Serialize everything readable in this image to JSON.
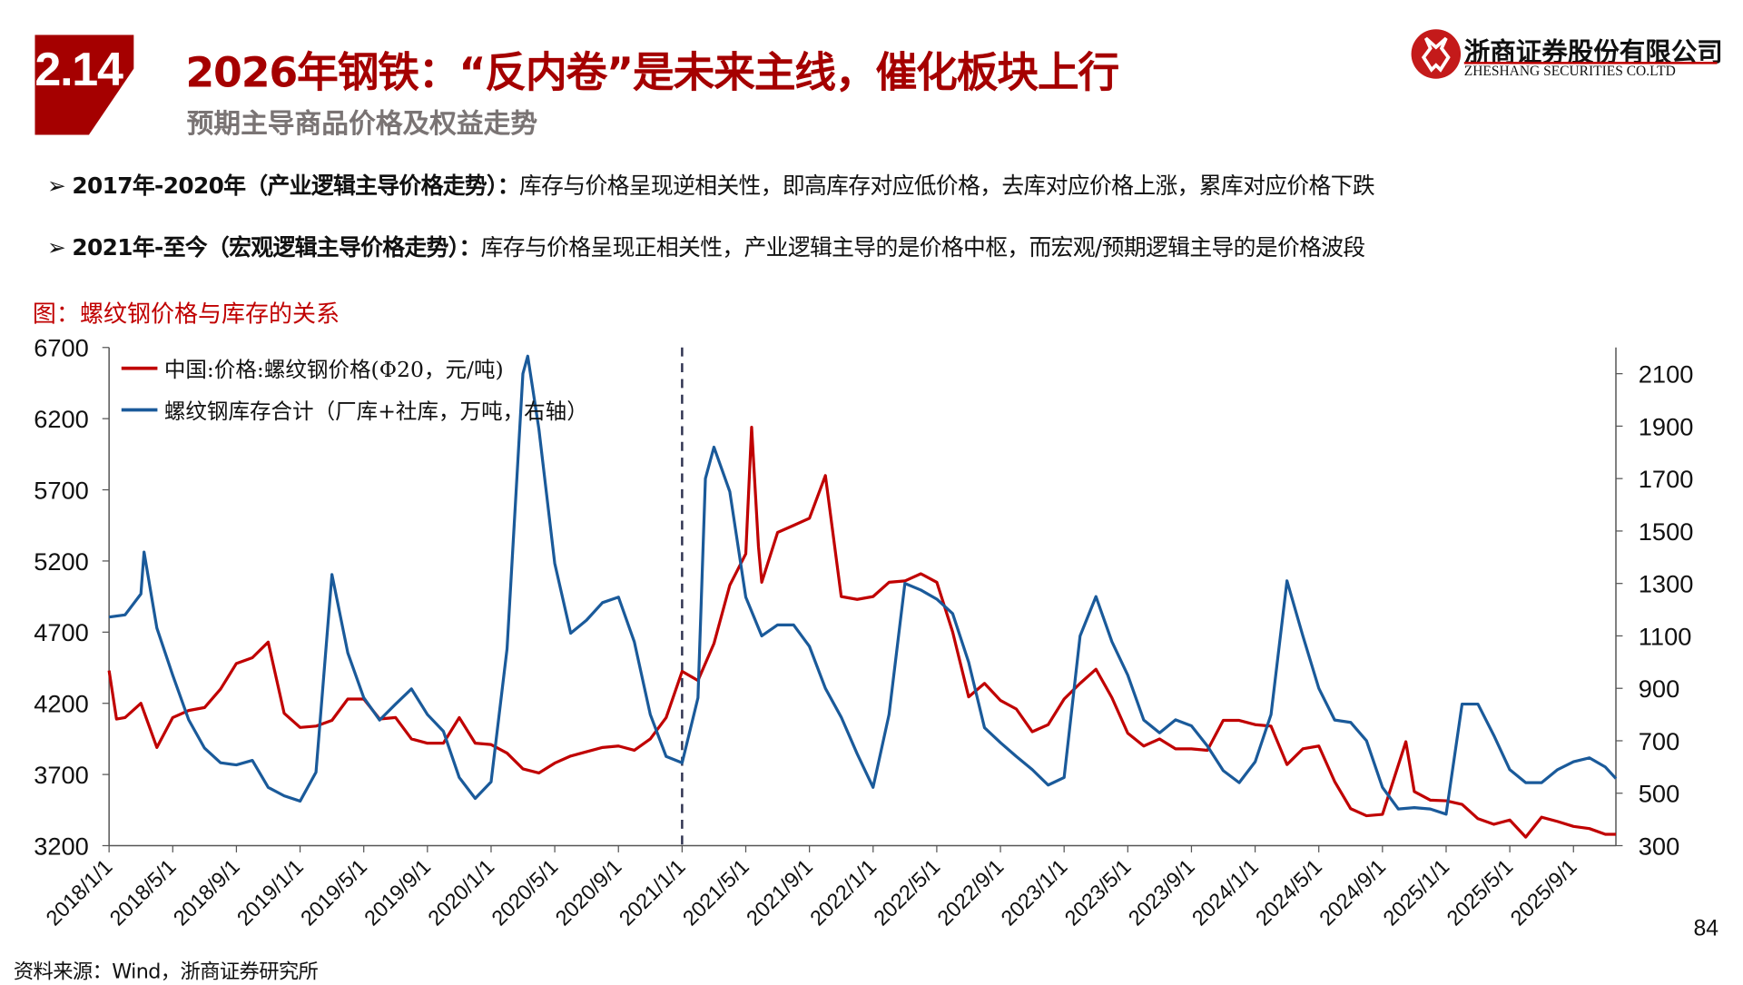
{
  "header": {
    "section_number": "2.14",
    "title": "2026年钢铁：“反内卷”是未来主线，催化板块上行",
    "subtitle": "预期主导商品价格及权益走势"
  },
  "logo": {
    "name_cn": "浙商证券股份有限公司",
    "name_en": "ZHESHANG SECURITIES CO.LTD"
  },
  "bullets": [
    {
      "bold": "2017年-2020年（产业逻辑主导价格走势）：",
      "text": "库存与价格呈现逆相关性，即高库存对应低价格，去库对应价格上涨，累库对应价格下跌"
    },
    {
      "bold": "2021年-至今（宏观逻辑主导价格走势）：",
      "text": "库存与价格呈现正相关性，产业逻辑主导的是价格中枢，而宏观/预期逻辑主导的是价格波段"
    }
  ],
  "figure_title": "图：螺纹钢价格与库存的关系",
  "source": "资料来源：Wind，浙商证券研究所",
  "page_number": "84",
  "colors": {
    "brand_red": "#a50000",
    "price_line": "#c00000",
    "inventory_line": "#1a5a9a",
    "divider": "#2f3350"
  },
  "chart_data": {
    "type": "line",
    "x_range": [
      "2018-01-01",
      "2025-11-21"
    ],
    "x_ticks": [
      "2018/1/1",
      "2018/5/1",
      "2018/9/1",
      "2019/1/1",
      "2019/5/1",
      "2019/9/1",
      "2020/1/1",
      "2020/5/1",
      "2020/9/1",
      "2021/1/1",
      "2021/5/1",
      "2021/9/1",
      "2022/1/1",
      "2022/5/1",
      "2022/9/1",
      "2023/1/1",
      "2023/5/1",
      "2023/9/1",
      "2024/1/1",
      "2024/5/1",
      "2024/9/1",
      "2025/1/1",
      "2025/5/1",
      "2025/9/1"
    ],
    "y_left": {
      "range": [
        3200,
        6700
      ],
      "ticks": [
        "3200",
        "3700",
        "4200",
        "4700",
        "5200",
        "5700",
        "6200",
        "6700"
      ]
    },
    "y_right": {
      "range": [
        300,
        2200
      ],
      "ticks": [
        "300",
        "500",
        "700",
        "900",
        "1100",
        "1300",
        "1500",
        "1700",
        "1900",
        "2100"
      ]
    },
    "reference_line": {
      "x": "2021-01-01",
      "style": "dashed"
    },
    "grid": false,
    "legend_placement": "top-left",
    "series": [
      {
        "name": "中国:价格:螺纹钢价格(Φ20，元/吨)",
        "axis": "left",
        "color": "#c00000",
        "points": [
          [
            "2018-01",
            4430
          ],
          [
            "2018-01-15",
            4090
          ],
          [
            "2018-02",
            4100
          ],
          [
            "2018-03",
            4200
          ],
          [
            "2018-04",
            3890
          ],
          [
            "2018-05",
            4100
          ],
          [
            "2018-06",
            4150
          ],
          [
            "2018-07",
            4170
          ],
          [
            "2018-08",
            4300
          ],
          [
            "2018-09",
            4480
          ],
          [
            "2018-10",
            4520
          ],
          [
            "2018-11",
            4630
          ],
          [
            "2018-12",
            4130
          ],
          [
            "2019-01",
            4030
          ],
          [
            "2019-02",
            4040
          ],
          [
            "2019-03",
            4080
          ],
          [
            "2019-04",
            4230
          ],
          [
            "2019-05",
            4230
          ],
          [
            "2019-06",
            4090
          ],
          [
            "2019-07",
            4100
          ],
          [
            "2019-08",
            3950
          ],
          [
            "2019-09",
            3920
          ],
          [
            "2019-10",
            3920
          ],
          [
            "2019-11",
            4100
          ],
          [
            "2019-12",
            3920
          ],
          [
            "2020-01",
            3910
          ],
          [
            "2020-02",
            3850
          ],
          [
            "2020-03",
            3740
          ],
          [
            "2020-04",
            3710
          ],
          [
            "2020-05",
            3780
          ],
          [
            "2020-06",
            3830
          ],
          [
            "2020-07",
            3860
          ],
          [
            "2020-08",
            3890
          ],
          [
            "2020-09",
            3900
          ],
          [
            "2020-10",
            3870
          ],
          [
            "2020-11",
            3950
          ],
          [
            "2020-12",
            4100
          ],
          [
            "2021-01",
            4425
          ],
          [
            "2021-02",
            4360
          ],
          [
            "2021-03",
            4620
          ],
          [
            "2021-04",
            5030
          ],
          [
            "2021-05",
            5250
          ],
          [
            "2021-05-12",
            6140
          ],
          [
            "2021-05-25",
            5300
          ],
          [
            "2021-06",
            5050
          ],
          [
            "2021-07",
            5400
          ],
          [
            "2021-08",
            5450
          ],
          [
            "2021-09",
            5500
          ],
          [
            "2021-10",
            5800
          ],
          [
            "2021-11",
            4950
          ],
          [
            "2021-12",
            4930
          ],
          [
            "2022-01",
            4950
          ],
          [
            "2022-02",
            5050
          ],
          [
            "2022-03",
            5060
          ],
          [
            "2022-04",
            5110
          ],
          [
            "2022-05",
            5050
          ],
          [
            "2022-06",
            4700
          ],
          [
            "2022-07",
            4245
          ],
          [
            "2022-08",
            4340
          ],
          [
            "2022-09",
            4220
          ],
          [
            "2022-10",
            4160
          ],
          [
            "2022-11",
            4000
          ],
          [
            "2022-12",
            4050
          ],
          [
            "2023-01",
            4230
          ],
          [
            "2023-02",
            4340
          ],
          [
            "2023-03",
            4440
          ],
          [
            "2023-04",
            4240
          ],
          [
            "2023-05",
            3990
          ],
          [
            "2023-06",
            3900
          ],
          [
            "2023-07",
            3950
          ],
          [
            "2023-08",
            3880
          ],
          [
            "2023-09",
            3880
          ],
          [
            "2023-10",
            3870
          ],
          [
            "2023-11",
            4080
          ],
          [
            "2023-12",
            4080
          ],
          [
            "2024-01",
            4050
          ],
          [
            "2024-02",
            4040
          ],
          [
            "2024-03",
            3770
          ],
          [
            "2024-04",
            3880
          ],
          [
            "2024-05",
            3900
          ],
          [
            "2024-06",
            3650
          ],
          [
            "2024-07",
            3460
          ],
          [
            "2024-08",
            3410
          ],
          [
            "2024-09",
            3420
          ],
          [
            "2024-10-15",
            3930
          ],
          [
            "2024-11",
            3580
          ],
          [
            "2024-12",
            3520
          ],
          [
            "2025-01",
            3515
          ],
          [
            "2025-02",
            3490
          ],
          [
            "2025-03",
            3390
          ],
          [
            "2025-04",
            3350
          ],
          [
            "2025-05",
            3380
          ],
          [
            "2025-06",
            3260
          ],
          [
            "2025-07",
            3400
          ],
          [
            "2025-08",
            3370
          ],
          [
            "2025-09",
            3335
          ],
          [
            "2025-10",
            3320
          ],
          [
            "2025-11",
            3280
          ],
          [
            "2025-11-21",
            3280
          ]
        ]
      },
      {
        "name": "螺纹钢库存合计（厂库+社库，万吨，右轴）",
        "axis": "right",
        "color": "#1a5a9a",
        "points": [
          [
            "2018-01",
            1172
          ],
          [
            "2018-02",
            1180
          ],
          [
            "2018-03",
            1260
          ],
          [
            "2018-03-07",
            1420
          ],
          [
            "2018-04",
            1130
          ],
          [
            "2018-05",
            950
          ],
          [
            "2018-06",
            780
          ],
          [
            "2018-07",
            672
          ],
          [
            "2018-08",
            616
          ],
          [
            "2018-09",
            608
          ],
          [
            "2018-10",
            625
          ],
          [
            "2018-11",
            522
          ],
          [
            "2018-12",
            490
          ],
          [
            "2019-01",
            470
          ],
          [
            "2019-02",
            580
          ],
          [
            "2019-03",
            1334
          ],
          [
            "2019-04",
            1035
          ],
          [
            "2019-05",
            864
          ],
          [
            "2019-06",
            779
          ],
          [
            "2019-07",
            840
          ],
          [
            "2019-08",
            898
          ],
          [
            "2019-09",
            800
          ],
          [
            "2019-10",
            736
          ],
          [
            "2019-11",
            560
          ],
          [
            "2019-12",
            480
          ],
          [
            "2020-01",
            543
          ],
          [
            "2020-02",
            1050
          ],
          [
            "2020-03",
            2100
          ],
          [
            "2020-03-10",
            2167
          ],
          [
            "2020-04",
            1890
          ],
          [
            "2020-05",
            1377
          ],
          [
            "2020-06",
            1110
          ],
          [
            "2020-07",
            1160
          ],
          [
            "2020-08",
            1227
          ],
          [
            "2020-09",
            1248
          ],
          [
            "2020-10",
            1077
          ],
          [
            "2020-11",
            800
          ],
          [
            "2020-12",
            640
          ],
          [
            "2021-01",
            616
          ],
          [
            "2021-02",
            864
          ],
          [
            "2021-02-15",
            1700
          ],
          [
            "2021-03",
            1820
          ],
          [
            "2021-04",
            1650
          ],
          [
            "2021-05",
            1248
          ],
          [
            "2021-06",
            1100
          ],
          [
            "2021-07",
            1142
          ],
          [
            "2021-08",
            1142
          ],
          [
            "2021-09",
            1060
          ],
          [
            "2021-10",
            900
          ],
          [
            "2021-11",
            790
          ],
          [
            "2021-12",
            650
          ],
          [
            "2022-01",
            522
          ],
          [
            "2022-02",
            800
          ],
          [
            "2022-03",
            1300
          ],
          [
            "2022-04",
            1275
          ],
          [
            "2022-05",
            1240
          ],
          [
            "2022-06",
            1185
          ],
          [
            "2022-07",
            1000
          ],
          [
            "2022-08",
            750
          ],
          [
            "2022-09",
            693
          ],
          [
            "2022-10",
            640
          ],
          [
            "2022-11",
            590
          ],
          [
            "2022-12",
            531
          ],
          [
            "2023-01",
            560
          ],
          [
            "2023-02",
            1100
          ],
          [
            "2023-03",
            1250
          ],
          [
            "2023-04",
            1078
          ],
          [
            "2023-05",
            950
          ],
          [
            "2023-06",
            779
          ],
          [
            "2023-07",
            730
          ],
          [
            "2023-08",
            780
          ],
          [
            "2023-09",
            757
          ],
          [
            "2023-10",
            680
          ],
          [
            "2023-11",
            586
          ],
          [
            "2023-12",
            540
          ],
          [
            "2024-01",
            620
          ],
          [
            "2024-02",
            800
          ],
          [
            "2024-03",
            1310
          ],
          [
            "2024-04",
            1100
          ],
          [
            "2024-05",
            900
          ],
          [
            "2024-06",
            779
          ],
          [
            "2024-07",
            770
          ],
          [
            "2024-08",
            700
          ],
          [
            "2024-09",
            522
          ],
          [
            "2024-10",
            440
          ],
          [
            "2024-11",
            445
          ],
          [
            "2024-12",
            440
          ],
          [
            "2025-01",
            420
          ],
          [
            "2025-02",
            840
          ],
          [
            "2025-03",
            840
          ],
          [
            "2025-04",
            720
          ],
          [
            "2025-05",
            590
          ],
          [
            "2025-06",
            540
          ],
          [
            "2025-07",
            540
          ],
          [
            "2025-08",
            590
          ],
          [
            "2025-09",
            620
          ],
          [
            "2025-10",
            635
          ],
          [
            "2025-11",
            600
          ],
          [
            "2025-11-21",
            556
          ]
        ]
      }
    ]
  }
}
